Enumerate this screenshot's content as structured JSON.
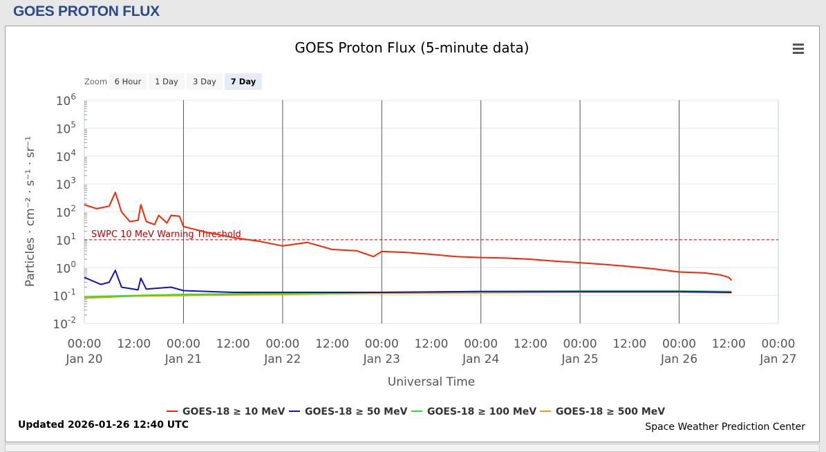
{
  "header": {
    "title": "GOES PROTON FLUX"
  },
  "chart_data": {
    "type": "line",
    "title": "GOES Proton Flux (5-minute data)",
    "xlabel": "Universal Time",
    "ylabel": "Particles · cm⁻² · s⁻¹ · sr⁻¹",
    "y_scale": "log",
    "ylim": [
      0.01,
      1000000
    ],
    "y_ticks": [
      {
        "base": "10",
        "exp": "6",
        "value": 1000000
      },
      {
        "base": "10",
        "exp": "5",
        "value": 100000
      },
      {
        "base": "10",
        "exp": "4",
        "value": 10000
      },
      {
        "base": "10",
        "exp": "3",
        "value": 1000
      },
      {
        "base": "10",
        "exp": "2",
        "value": 100
      },
      {
        "base": "10",
        "exp": "1",
        "value": 10
      },
      {
        "base": "10",
        "exp": "0",
        "value": 1
      },
      {
        "base": "10",
        "exp": "-1",
        "value": 0.1
      },
      {
        "base": "10",
        "exp": "-2",
        "value": 0.01
      }
    ],
    "x_ticks": [
      {
        "time": "00:00",
        "date": "Jan 20"
      },
      {
        "time": "12:00",
        "date": ""
      },
      {
        "time": "00:00",
        "date": "Jan 21"
      },
      {
        "time": "12:00",
        "date": ""
      },
      {
        "time": "00:00",
        "date": "Jan 22"
      },
      {
        "time": "12:00",
        "date": ""
      },
      {
        "time": "00:00",
        "date": "Jan 23"
      },
      {
        "time": "12:00",
        "date": ""
      },
      {
        "time": "00:00",
        "date": "Jan 24"
      },
      {
        "time": "12:00",
        "date": ""
      },
      {
        "time": "00:00",
        "date": "Jan 25"
      },
      {
        "time": "12:00",
        "date": ""
      },
      {
        "time": "00:00",
        "date": "Jan 26"
      },
      {
        "time": "12:00",
        "date": ""
      },
      {
        "time": "00:00",
        "date": "Jan 27"
      }
    ],
    "x_range": [
      "2026-01-20T00:00Z",
      "2026-01-27T00:00Z"
    ],
    "threshold": {
      "label": "SWPC 10 MeV Warning Threshold",
      "value": 10,
      "color": "#c00000"
    },
    "series": [
      {
        "name": "GOES-18 ≥ 10 MeV",
        "color": "#ff2200",
        "points": [
          [
            "2026-01-20T00:00Z",
            180
          ],
          [
            "2026-01-20T03:00Z",
            130
          ],
          [
            "2026-01-20T06:00Z",
            160
          ],
          [
            "2026-01-20T07:30Z",
            500
          ],
          [
            "2026-01-20T09:00Z",
            100
          ],
          [
            "2026-01-20T11:00Z",
            45
          ],
          [
            "2026-01-20T13:00Z",
            50
          ],
          [
            "2026-01-20T13:40Z",
            180
          ],
          [
            "2026-01-20T15:00Z",
            45
          ],
          [
            "2026-01-20T17:00Z",
            35
          ],
          [
            "2026-01-20T18:00Z",
            75
          ],
          [
            "2026-01-20T20:00Z",
            40
          ],
          [
            "2026-01-20T21:00Z",
            75
          ],
          [
            "2026-01-20T23:00Z",
            70
          ],
          [
            "2026-01-21T00:00Z",
            30
          ],
          [
            "2026-01-21T02:00Z",
            25
          ],
          [
            "2026-01-21T06:00Z",
            18
          ],
          [
            "2026-01-21T12:00Z",
            12
          ],
          [
            "2026-01-21T18:00Z",
            9
          ],
          [
            "2026-01-22T00:00Z",
            6
          ],
          [
            "2026-01-22T06:00Z",
            8
          ],
          [
            "2026-01-22T09:00Z",
            6
          ],
          [
            "2026-01-22T12:00Z",
            4.5
          ],
          [
            "2026-01-22T18:00Z",
            4
          ],
          [
            "2026-01-22T22:00Z",
            2.5
          ],
          [
            "2026-01-23T00:00Z",
            3.8
          ],
          [
            "2026-01-23T06:00Z",
            3.5
          ],
          [
            "2026-01-23T12:00Z",
            3
          ],
          [
            "2026-01-23T18:00Z",
            2.5
          ],
          [
            "2026-01-24T00:00Z",
            2.3
          ],
          [
            "2026-01-24T06:00Z",
            2.2
          ],
          [
            "2026-01-24T12:00Z",
            2
          ],
          [
            "2026-01-24T18:00Z",
            1.7
          ],
          [
            "2026-01-25T00:00Z",
            1.5
          ],
          [
            "2026-01-25T06:00Z",
            1.3
          ],
          [
            "2026-01-25T12:00Z",
            1.1
          ],
          [
            "2026-01-25T18:00Z",
            0.9
          ],
          [
            "2026-01-26T00:00Z",
            0.7
          ],
          [
            "2026-01-26T06:00Z",
            0.65
          ],
          [
            "2026-01-26T10:00Z",
            0.55
          ],
          [
            "2026-01-26T12:00Z",
            0.45
          ],
          [
            "2026-01-26T12:40Z",
            0.35
          ]
        ]
      },
      {
        "name": "GOES-18 ≥ 50 MeV",
        "color": "#1010cc",
        "points": [
          [
            "2026-01-20T00:00Z",
            0.45
          ],
          [
            "2026-01-20T04:00Z",
            0.25
          ],
          [
            "2026-01-20T06:00Z",
            0.3
          ],
          [
            "2026-01-20T07:30Z",
            0.8
          ],
          [
            "2026-01-20T09:00Z",
            0.2
          ],
          [
            "2026-01-20T13:00Z",
            0.16
          ],
          [
            "2026-01-20T13:40Z",
            0.42
          ],
          [
            "2026-01-20T15:00Z",
            0.17
          ],
          [
            "2026-01-20T21:00Z",
            0.2
          ],
          [
            "2026-01-21T00:00Z",
            0.15
          ],
          [
            "2026-01-21T12:00Z",
            0.13
          ],
          [
            "2026-01-22T00:00Z",
            0.13
          ],
          [
            "2026-01-23T00:00Z",
            0.13
          ],
          [
            "2026-01-24T00:00Z",
            0.14
          ],
          [
            "2026-01-25T00:00Z",
            0.14
          ],
          [
            "2026-01-26T00:00Z",
            0.14
          ],
          [
            "2026-01-26T12:40Z",
            0.13
          ]
        ]
      },
      {
        "name": "GOES-18 ≥ 100 MeV",
        "color": "#33dd22",
        "points": [
          [
            "2026-01-20T00:00Z",
            0.09
          ],
          [
            "2026-01-20T12:00Z",
            0.1
          ],
          [
            "2026-01-21T00:00Z",
            0.11
          ],
          [
            "2026-01-22T00:00Z",
            0.12
          ],
          [
            "2026-01-23T00:00Z",
            0.13
          ],
          [
            "2026-01-24T00:00Z",
            0.14
          ],
          [
            "2026-01-25T00:00Z",
            0.145
          ],
          [
            "2026-01-26T00:00Z",
            0.145
          ],
          [
            "2026-01-26T12:40Z",
            0.14
          ]
        ]
      },
      {
        "name": "GOES-18 ≥ 500 MeV",
        "color": "#e6a10a",
        "points": [
          [
            "2026-01-20T00:00Z",
            0.08
          ],
          [
            "2026-01-20T12:00Z",
            0.095
          ],
          [
            "2026-01-21T00:00Z",
            0.1
          ],
          [
            "2026-01-22T00:00Z",
            0.11
          ],
          [
            "2026-01-23T00:00Z",
            0.12
          ],
          [
            "2026-01-24T00:00Z",
            0.125
          ],
          [
            "2026-01-25T00:00Z",
            0.13
          ],
          [
            "2026-01-26T00:00Z",
            0.13
          ],
          [
            "2026-01-26T12:40Z",
            0.125
          ]
        ]
      }
    ],
    "grid": true,
    "legend_placement": "bottom-center"
  },
  "zoom": {
    "label": "Zoom",
    "buttons": [
      {
        "label": "6 Hour",
        "selected": false
      },
      {
        "label": "1 Day",
        "selected": false
      },
      {
        "label": "3 Day",
        "selected": false
      },
      {
        "label": "7 Day",
        "selected": true
      }
    ]
  },
  "footer": {
    "updated": "Updated 2026-01-26 12:40 UTC",
    "credit": "Space Weather Prediction Center"
  },
  "menu_icon": "hamburger-menu-icon"
}
